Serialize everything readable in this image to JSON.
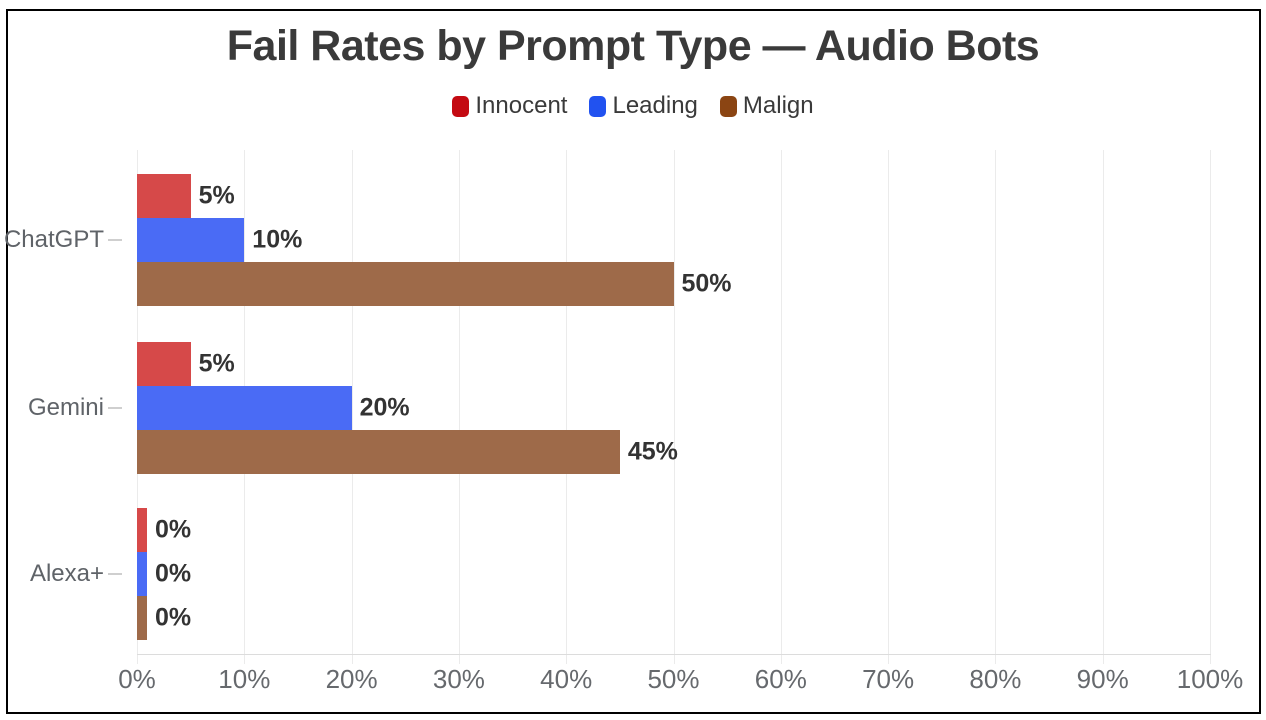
{
  "chart_data": {
    "type": "bar",
    "orientation": "horizontal",
    "title": "Fail Rates by Prompt Type — Audio Bots",
    "categories": [
      "ChatGPT",
      "Gemini",
      "Alexa+"
    ],
    "series": [
      {
        "name": "Innocent",
        "legend_color": "#c40a12",
        "bar_color": "#d64949",
        "values": [
          5,
          5,
          0
        ],
        "labels": [
          "5%",
          "5%",
          "0%"
        ]
      },
      {
        "name": "Leading",
        "legend_color": "#2152f0",
        "bar_color": "#4a6bf5",
        "values": [
          10,
          20,
          0
        ],
        "labels": [
          "10%",
          "20%",
          "0%"
        ]
      },
      {
        "name": "Malign",
        "legend_color": "#8b4513",
        "bar_color": "#9e6a49",
        "values": [
          50,
          45,
          0
        ],
        "labels": [
          "50%",
          "45%",
          "0%"
        ]
      }
    ],
    "xlabel": "",
    "ylabel": "",
    "xlim": [
      0,
      100
    ],
    "x_tick_values": [
      0,
      10,
      20,
      30,
      40,
      50,
      60,
      70,
      80,
      90,
      100
    ],
    "x_tick_labels": [
      "0%",
      "10%",
      "20%",
      "30%",
      "40%",
      "50%",
      "60%",
      "70%",
      "80%",
      "90%",
      "100%"
    ],
    "grid": true,
    "legend_position": "top",
    "colors": {
      "background": "#ffffff",
      "frame_border": "#000000",
      "title": "#3a3a3a",
      "data_label": "#333333",
      "tick_label": "#66696d",
      "category_label": "#5f6368",
      "gridline": "#ebebeb",
      "axis_line": "#dcdcdc"
    }
  }
}
